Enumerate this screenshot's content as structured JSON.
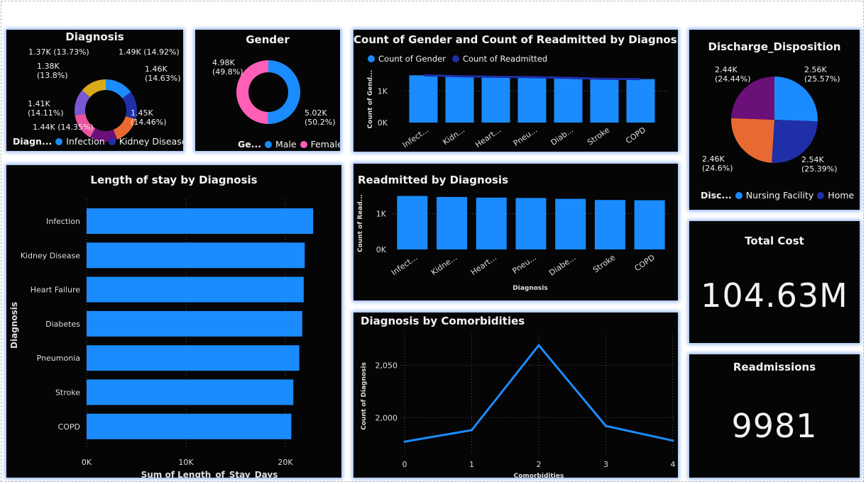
{
  "colors": {
    "infection": "#1a8cff",
    "kidney": "#1f2fa8",
    "heart": "#e86a32",
    "pneumonia": "#6b0f79",
    "diabetes": "#e8549e",
    "stroke": "#7b57d2",
    "copd": "#d9aa1a",
    "male": "#1a8cff",
    "female": "#ff5fb7",
    "bar": "#1a8cff",
    "line_dark": "#1f2fa8",
    "nursing": "#1a8cff",
    "home": "#1f2fa8",
    "rehab": "#e86a32",
    "other": "#6b0f79"
  },
  "diagnosis_donut": {
    "title": "Diagnosis",
    "legend_head": "Diagn...",
    "legend_items": [
      "Infection",
      "Kidney Disease"
    ],
    "chart_data": {
      "type": "pie",
      "categories": [
        "Infection",
        "Kidney Disease",
        "Heart Failure",
        "Pneumonia",
        "Diabetes",
        "Stroke",
        "COPD"
      ],
      "values": [
        1.49,
        1.46,
        1.45,
        1.44,
        1.41,
        1.38,
        1.37
      ],
      "labels": [
        "1.49K (14.92%)",
        "1.46K (14.63%)",
        "1.45K (14.46%)",
        "1.44K (14.35%)",
        "1.41K (14.11%)",
        "1.38K (13.8%)",
        "1.37K (13.73%)"
      ]
    }
  },
  "gender_donut": {
    "title": "Gender",
    "legend_head": "Ge...",
    "legend_items": [
      "Male",
      "Female"
    ],
    "chart_data": {
      "type": "pie",
      "categories": [
        "Male",
        "Female"
      ],
      "values": [
        5.02,
        4.98
      ],
      "labels": [
        "5.02K (50.2%)",
        "4.98K (49.8%)"
      ]
    }
  },
  "gender_readmit_chart": {
    "title": "Count of Gender and Count of Readmitted by Diagnosis",
    "legend_items": [
      "Count of Gender",
      "Count of Readmitted"
    ],
    "ylabel": "Count of Gend...",
    "chart_data": {
      "type": "bar",
      "categories": [
        "Infect...",
        "Kidn...",
        "Heart...",
        "Pneu...",
        "Diab...",
        "Stroke",
        "COPD"
      ],
      "series": [
        {
          "name": "Count of Gender",
          "values": [
            1492,
            1463,
            1446,
            1435,
            1411,
            1380,
            1373
          ]
        },
        {
          "name": "Count of Readmitted",
          "values": [
            1492,
            1463,
            1446,
            1435,
            1411,
            1380,
            1373
          ]
        }
      ],
      "yticks": [
        "0K",
        "1K"
      ],
      "ylim": [
        0,
        1700
      ]
    }
  },
  "discharge_pie": {
    "title": "Discharge_Disposition",
    "legend_head": "Disc...",
    "legend_items": [
      "Nursing Facility",
      "Home"
    ],
    "chart_data": {
      "type": "pie",
      "values": [
        2.56,
        2.54,
        2.46,
        2.44
      ],
      "labels": [
        "2.56K (25.57%)",
        "2.54K (25.39%)",
        "2.46K (24.6%)",
        "2.44K (24.44%)"
      ]
    }
  },
  "length_of_stay": {
    "title": "Length of stay by Diagnosis",
    "xlabel": "Sum of Length_of_Stay_Days",
    "ylabel": "Diagnosis",
    "chart_data": {
      "type": "bar",
      "orientation": "horizontal",
      "categories": [
        "Infection",
        "Kidney Disease",
        "Heart Failure",
        "Diabetes",
        "Pneumonia",
        "Stroke",
        "COPD"
      ],
      "values": [
        22800,
        21950,
        21850,
        21700,
        21400,
        20800,
        20600
      ],
      "xticks": [
        "0K",
        "10K",
        "20K"
      ],
      "xlim": [
        0,
        25000
      ]
    }
  },
  "readmitted_chart": {
    "title": "Readmitted by Diagnosis",
    "xlabel": "Diagnosis",
    "ylabel": "Count of Read...",
    "chart_data": {
      "type": "bar",
      "categories": [
        "Infect...",
        "Kidne...",
        "Heart...",
        "Pneu...",
        "Diabe...",
        "Stroke",
        "COPD"
      ],
      "values": [
        1492,
        1463,
        1446,
        1435,
        1411,
        1380,
        1373
      ],
      "yticks": [
        "0K",
        "1K"
      ],
      "ylim": [
        0,
        1700
      ]
    }
  },
  "comorbidities_chart": {
    "title": "Diagnosis by Comorbidities",
    "xlabel": "Comorbidities",
    "ylabel": "Count of Diagnosis",
    "chart_data": {
      "type": "line",
      "x": [
        0,
        1,
        2,
        3,
        4
      ],
      "values": [
        1977,
        1988,
        2069,
        1992,
        1978
      ],
      "yticks": [
        "2,000",
        "2,050"
      ],
      "xticks": [
        "0",
        "1",
        "2",
        "3",
        "4"
      ],
      "ylim": [
        1965,
        2080
      ]
    }
  },
  "total_cost": {
    "title": "Total Cost",
    "value": "104.63M"
  },
  "readmissions": {
    "title": "Readmissions",
    "value": "9981"
  }
}
